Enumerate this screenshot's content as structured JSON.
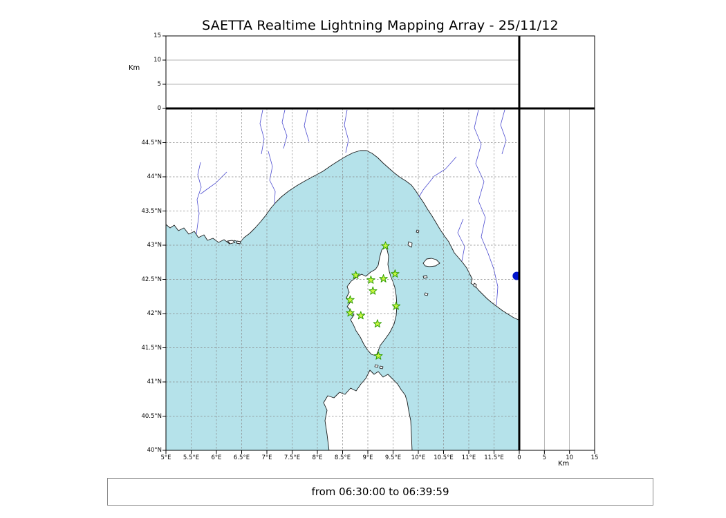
{
  "title": "SAETTA Realtime Lightning Mapping Array - 25/11/12",
  "status_bar": {
    "text": "from 06:30:00 to 06:39:59"
  },
  "axes": {
    "km_label_left": "Km",
    "km_label_bottom": "Km",
    "lon_ticks": [
      "5°E",
      "5.5°E",
      "6°E",
      "6.5°E",
      "7°E",
      "7.5°E",
      "8°E",
      "8.5°E",
      "9°E",
      "9.5°E",
      "10°E",
      "10.5°E",
      "11°E",
      "11.5°E"
    ],
    "lat_ticks": [
      "40°N",
      "40.5°N",
      "41°N",
      "41.5°N",
      "42°N",
      "42.5°N",
      "43°N",
      "43.5°N",
      "44°N",
      "44.5°N"
    ],
    "alt_ticks": [
      "0",
      "5",
      "10",
      "15"
    ]
  },
  "chart_data": {
    "type": "scatter",
    "title": "SAETTA Realtime Lightning Mapping Array - 25/11/12",
    "time_range": "from 06:30:00 to 06:39:59",
    "grid": "dashed 0.5-degree graticule; altitude panels gridded every 5 km",
    "panels": {
      "main": {
        "x": "longitude_deg_E",
        "y": "latitude_deg_N",
        "xlim": [
          5,
          12
        ],
        "ylim": [
          40,
          45
        ]
      },
      "top": {
        "x": "longitude_deg_E",
        "y": "altitude_km",
        "ylim": [
          0,
          15
        ]
      },
      "right": {
        "x": "altitude_km",
        "y": "latitude_deg_N",
        "xlim": [
          0,
          15
        ]
      }
    },
    "stations": [
      {
        "lon": 9.35,
        "lat": 42.99
      },
      {
        "lon": 8.76,
        "lat": 42.56
      },
      {
        "lon": 9.06,
        "lat": 42.49
      },
      {
        "lon": 9.31,
        "lat": 42.51
      },
      {
        "lon": 9.54,
        "lat": 42.58
      },
      {
        "lon": 9.1,
        "lat": 42.33
      },
      {
        "lon": 8.65,
        "lat": 42.2
      },
      {
        "lon": 9.56,
        "lat": 42.11
      },
      {
        "lon": 8.65,
        "lat": 42.01
      },
      {
        "lon": 8.86,
        "lat": 41.97
      },
      {
        "lon": 9.19,
        "lat": 41.85
      },
      {
        "lon": 9.21,
        "lat": 41.38
      }
    ],
    "events": [
      {
        "lon": 11.95,
        "lat": 42.55
      }
    ]
  },
  "colors": {
    "sea": "#b5e2ea",
    "land": "#ffffff",
    "coast": "#1a1a1a",
    "river": "#4b4bd0",
    "grid": "#888888",
    "station_fill": "#c6f542",
    "station_edge": "#2f9e00",
    "event": "#0013cc"
  }
}
